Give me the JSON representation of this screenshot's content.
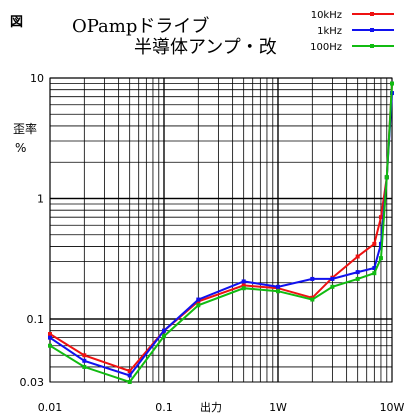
{
  "chart_data": {
    "type": "line",
    "title": "OPampドライブ",
    "subtitle": "半導体アンプ・改",
    "figure_label": "図",
    "xlabel": "出力",
    "ylabel_line1": "歪率",
    "ylabel_line2": "%",
    "xscale": "log",
    "yscale": "log",
    "xlim": [
      0.01,
      10
    ],
    "ylim": [
      0.03,
      10
    ],
    "grid": true,
    "legend_position": "top-right",
    "x_tick_labels": [
      {
        "value": 0.01,
        "label": "0.01"
      },
      {
        "value": 0.1,
        "label": "0.1"
      },
      {
        "value": 1,
        "label": "1W"
      },
      {
        "value": 10,
        "label": "10W"
      }
    ],
    "y_tick_labels": [
      {
        "value": 10,
        "label": "10"
      },
      {
        "value": 1,
        "label": "1"
      },
      {
        "value": 0.1,
        "label": "0.1"
      },
      {
        "value": 0.03,
        "label": "0.03"
      }
    ],
    "series": [
      {
        "name": "10kHz",
        "color": "#ee1111",
        "points": [
          [
            0.01,
            0.075
          ],
          [
            0.02,
            0.05
          ],
          [
            0.05,
            0.037
          ],
          [
            0.1,
            0.08
          ],
          [
            0.2,
            0.14
          ],
          [
            0.5,
            0.19
          ],
          [
            1,
            0.18
          ],
          [
            2,
            0.15
          ],
          [
            3,
            0.22
          ],
          [
            5,
            0.33
          ],
          [
            7,
            0.42
          ],
          [
            8,
            0.7
          ],
          [
            9,
            1.5
          ],
          [
            10,
            9.0
          ]
        ]
      },
      {
        "name": "1kHz",
        "color": "#1111ee",
        "points": [
          [
            0.01,
            0.07
          ],
          [
            0.02,
            0.045
          ],
          [
            0.05,
            0.034
          ],
          [
            0.1,
            0.08
          ],
          [
            0.2,
            0.145
          ],
          [
            0.5,
            0.205
          ],
          [
            1,
            0.185
          ],
          [
            2,
            0.215
          ],
          [
            3,
            0.215
          ],
          [
            5,
            0.245
          ],
          [
            7,
            0.265
          ],
          [
            8,
            0.42
          ],
          [
            9,
            1.5
          ],
          [
            10,
            7.5
          ]
        ]
      },
      {
        "name": "100Hz",
        "color": "#11bb11",
        "points": [
          [
            0.01,
            0.06
          ],
          [
            0.02,
            0.04
          ],
          [
            0.05,
            0.03
          ],
          [
            0.1,
            0.072
          ],
          [
            0.2,
            0.13
          ],
          [
            0.5,
            0.18
          ],
          [
            1,
            0.17
          ],
          [
            2,
            0.145
          ],
          [
            3,
            0.185
          ],
          [
            5,
            0.215
          ],
          [
            7,
            0.24
          ],
          [
            8,
            0.32
          ],
          [
            9,
            1.5
          ],
          [
            10,
            9.0
          ]
        ]
      }
    ]
  }
}
